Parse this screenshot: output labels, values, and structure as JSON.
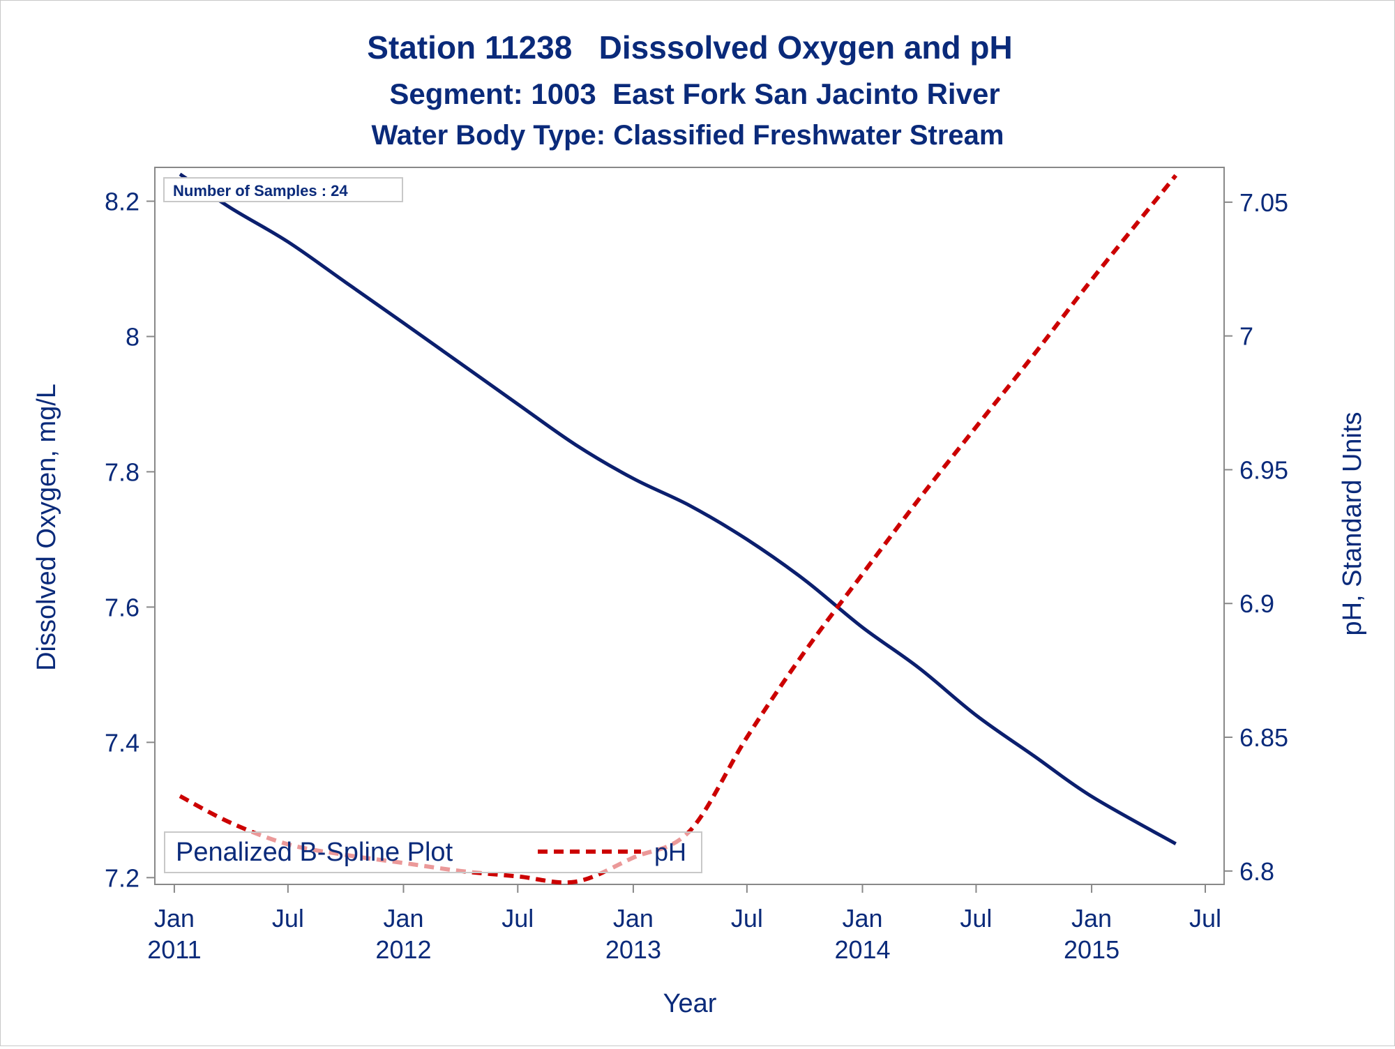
{
  "title": "Station 11238   Disssolved Oxygen and pH",
  "subtitle": "Segment: 1003  East Fork San Jacinto River",
  "subtitle2": "Water Body Type: Classified Freshwater Stream",
  "colors": {
    "text": "#0a2a7a",
    "do_line": "#0b1f6e",
    "ph_line": "#cc0000",
    "axis": "#888888"
  },
  "chart_data": {
    "type": "line",
    "xlabel": "Year",
    "ylabel": "Dissolved Oxygen, mg/L",
    "y2label": "pH, Standard Units",
    "xlim": [
      "2010-12-01",
      "2015-07-31"
    ],
    "ylim": [
      7.19,
      8.25
    ],
    "y2lim": [
      6.795,
      7.063
    ],
    "xticks": [
      {
        "date": "2011-01-01",
        "label1": "Jan",
        "label2": "2011"
      },
      {
        "date": "2011-07-01",
        "label1": "Jul",
        "label2": ""
      },
      {
        "date": "2012-01-01",
        "label1": "Jan",
        "label2": "2012"
      },
      {
        "date": "2012-07-01",
        "label1": "Jul",
        "label2": ""
      },
      {
        "date": "2013-01-01",
        "label1": "Jan",
        "label2": "2013"
      },
      {
        "date": "2013-07-01",
        "label1": "Jul",
        "label2": ""
      },
      {
        "date": "2014-01-01",
        "label1": "Jan",
        "label2": "2014"
      },
      {
        "date": "2014-07-01",
        "label1": "Jul",
        "label2": ""
      },
      {
        "date": "2015-01-01",
        "label1": "Jan",
        "label2": "2015"
      },
      {
        "date": "2015-07-01",
        "label1": "Jul",
        "label2": ""
      }
    ],
    "yticks": [
      "7.2",
      "7.4",
      "7.6",
      "7.8",
      "8",
      "8.2"
    ],
    "y2ticks": [
      "6.8",
      "6.85",
      "6.9",
      "6.95",
      "7",
      "7.05"
    ],
    "series": [
      {
        "name": "",
        "axis": "y",
        "style": "solid",
        "points": [
          [
            "2011-01-10",
            8.24
          ],
          [
            "2011-04-01",
            8.19
          ],
          [
            "2011-07-01",
            8.14
          ],
          [
            "2011-10-01",
            8.08
          ],
          [
            "2012-01-01",
            8.02
          ],
          [
            "2012-04-01",
            7.96
          ],
          [
            "2012-07-01",
            7.9
          ],
          [
            "2012-10-01",
            7.84
          ],
          [
            "2013-01-01",
            7.79
          ],
          [
            "2013-04-01",
            7.75
          ],
          [
            "2013-07-01",
            7.7
          ],
          [
            "2013-10-01",
            7.64
          ],
          [
            "2014-01-01",
            7.57
          ],
          [
            "2014-04-01",
            7.51
          ],
          [
            "2014-07-01",
            7.44
          ],
          [
            "2014-10-01",
            7.38
          ],
          [
            "2015-01-01",
            7.32
          ],
          [
            "2015-05-15",
            7.25
          ]
        ]
      },
      {
        "name": "pH",
        "axis": "y2",
        "style": "dashed",
        "points": [
          [
            "2011-01-10",
            6.828
          ],
          [
            "2011-04-01",
            6.818
          ],
          [
            "2011-07-01",
            6.81
          ],
          [
            "2011-10-01",
            6.806
          ],
          [
            "2012-01-01",
            6.803
          ],
          [
            "2012-04-01",
            6.8
          ],
          [
            "2012-07-01",
            6.798
          ],
          [
            "2012-10-01",
            6.796
          ],
          [
            "2013-01-01",
            6.805
          ],
          [
            "2013-04-01",
            6.815
          ],
          [
            "2013-07-01",
            6.85
          ],
          [
            "2013-10-01",
            6.882
          ],
          [
            "2014-01-01",
            6.911
          ],
          [
            "2014-04-01",
            6.939
          ],
          [
            "2014-07-01",
            6.966
          ],
          [
            "2014-10-01",
            6.993
          ],
          [
            "2015-01-01",
            7.021
          ],
          [
            "2015-05-15",
            7.06
          ]
        ]
      }
    ],
    "inset_label": "Number of Samples : 24",
    "legend_title": "Penalized B-Spline Plot",
    "legend_entry": "pH",
    "legend_placement": "bottom-left"
  }
}
